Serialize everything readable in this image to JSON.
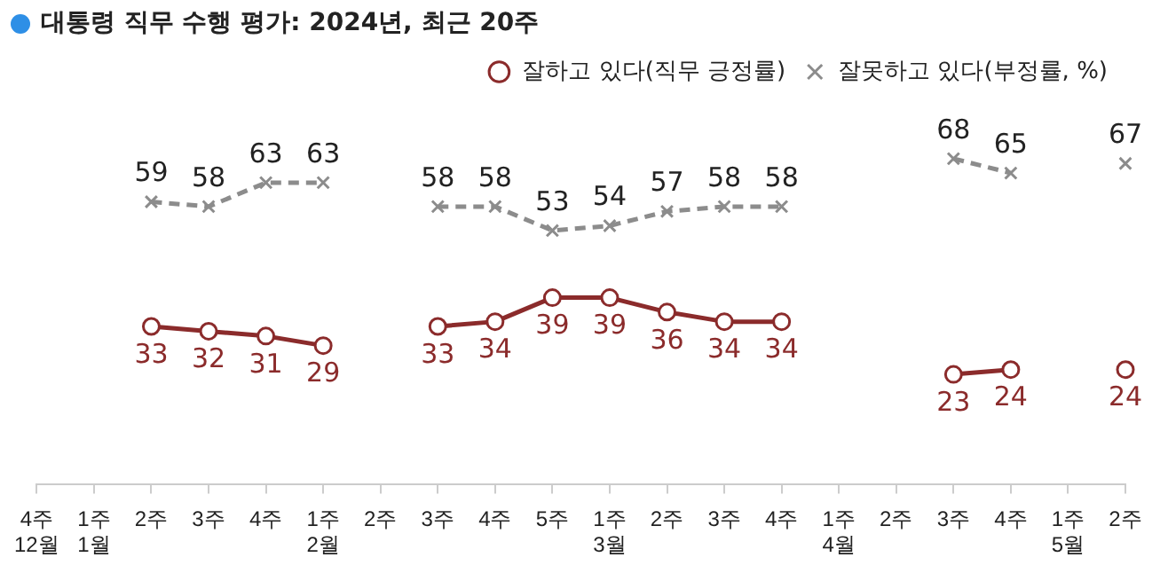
{
  "chart_data": {
    "type": "line",
    "title": "대통령 직무 수행 평가: 2024년, 최근 20주",
    "categories": [
      "4주\n12월",
      "1주\n1월",
      "2주",
      "3주",
      "4주",
      "1주\n2월",
      "2주",
      "3주",
      "4주",
      "5주",
      "1주\n3월",
      "2주",
      "3주",
      "4주",
      "1주\n4월",
      "2주",
      "3주",
      "4주",
      "1주\n5월",
      "2주"
    ],
    "series": [
      {
        "name": "잘하고 있다(직무 긍정률)",
        "color": "#8b2b2b",
        "marker": "circle",
        "line_style": "solid",
        "values": [
          null,
          null,
          33,
          32,
          31,
          29,
          null,
          33,
          34,
          39,
          39,
          36,
          34,
          34,
          null,
          null,
          23,
          24,
          null,
          24
        ]
      },
      {
        "name": "잘못하고 있다(부정률, %)",
        "color": "#8c8c8c",
        "marker": "cross",
        "line_style": "dashed",
        "values": [
          null,
          null,
          59,
          58,
          63,
          63,
          null,
          58,
          58,
          53,
          54,
          57,
          58,
          58,
          null,
          null,
          68,
          65,
          null,
          67
        ]
      }
    ],
    "data_labels": true,
    "grid": false,
    "legend": "top right"
  }
}
